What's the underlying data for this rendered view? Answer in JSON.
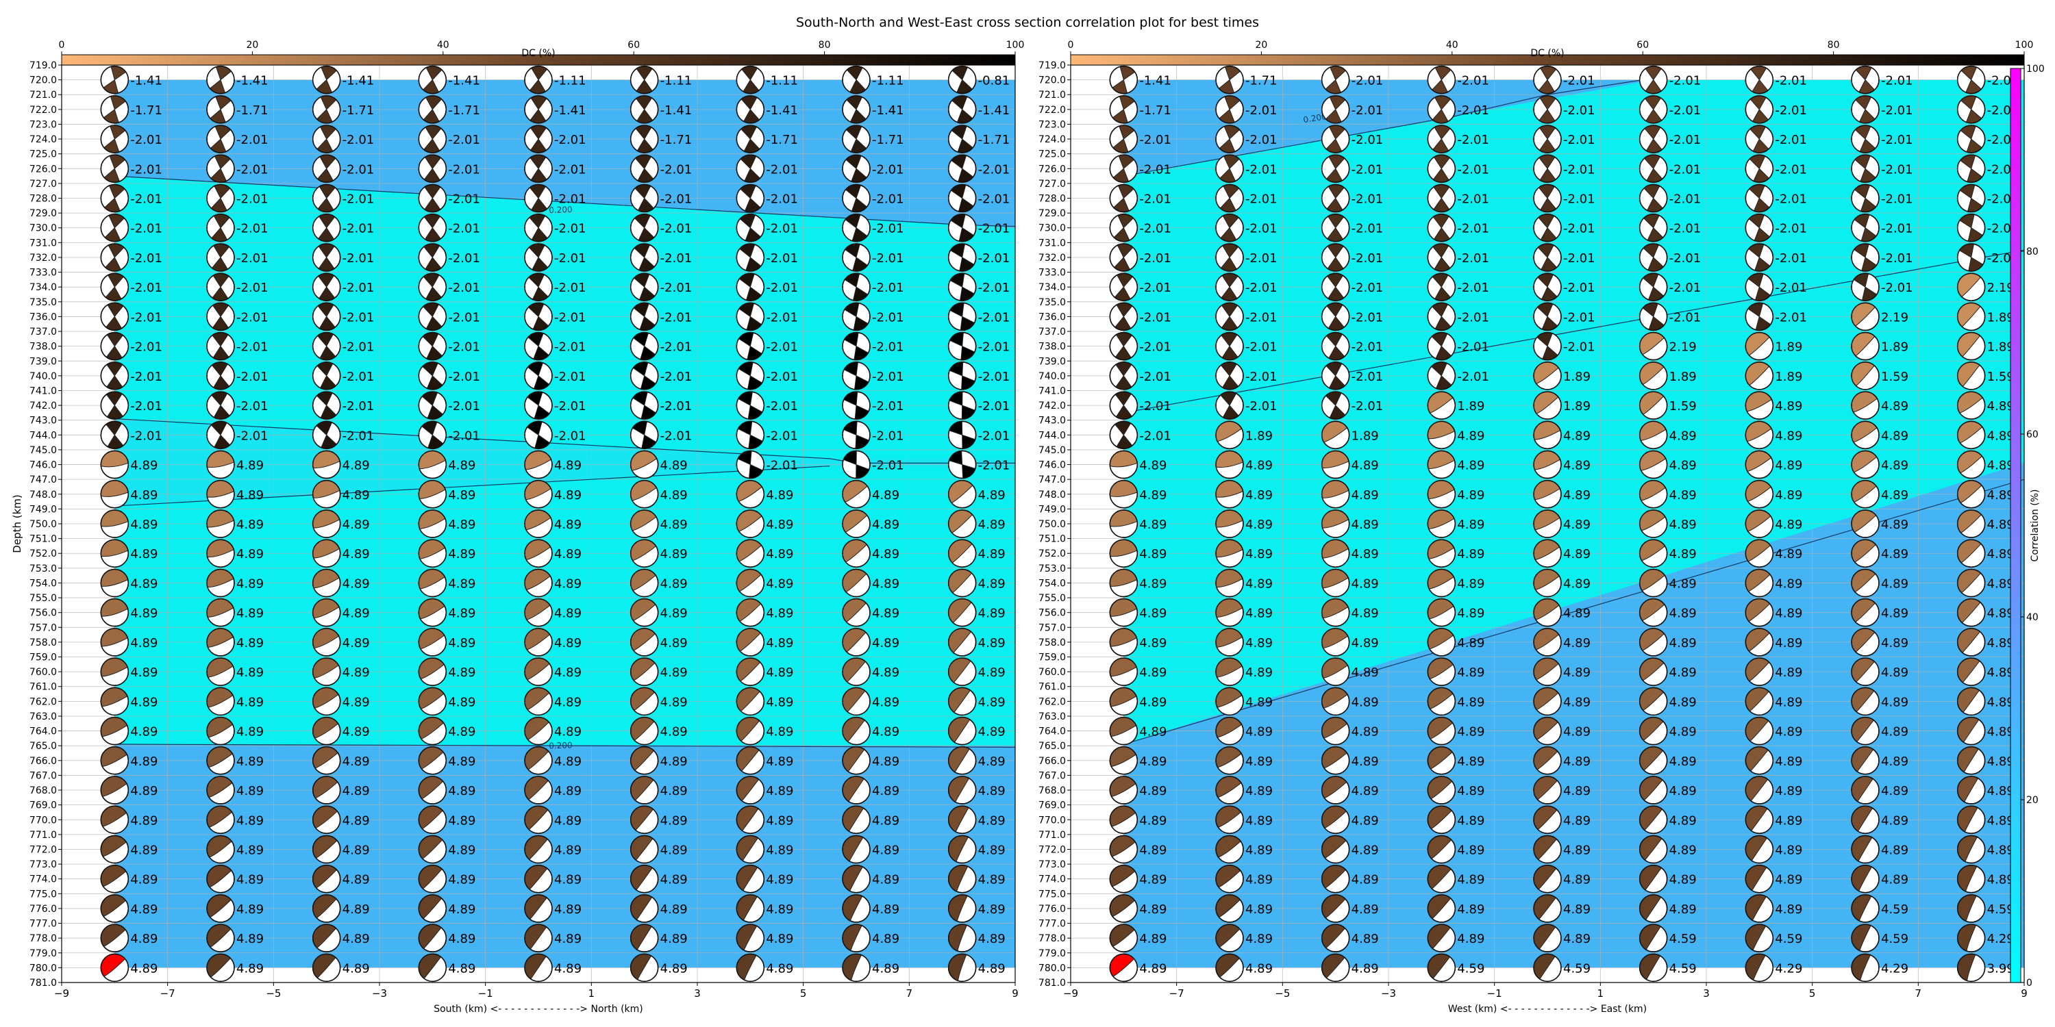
{
  "title": "South-North and West-East cross section correlation plot for best times",
  "chart_data": [
    {
      "type": "heatmap",
      "panel": "south-north",
      "xlabel": "South (km) <- - - - - - - - - - - - -> North (km)",
      "ylabel": "Depth (km)",
      "xlim": [
        -9,
        9
      ],
      "ylim": [
        781,
        719
      ],
      "x_ticks": [
        "−9",
        "−7",
        "−5",
        "−3",
        "−1",
        "1",
        "3",
        "5",
        "7",
        "9"
      ],
      "x": [
        -8,
        -6,
        -4,
        -2,
        0,
        2,
        4,
        6,
        8
      ],
      "depths": [
        720,
        722,
        724,
        726,
        728,
        730,
        732,
        734,
        736,
        738,
        740,
        742,
        744,
        746,
        748,
        750,
        752,
        754,
        756,
        758,
        760,
        762,
        764,
        766,
        768,
        770,
        772,
        774,
        776,
        778,
        780
      ],
      "time_labels": [
        [
          "-1.41",
          "-1.41",
          "-1.41",
          "-1.41",
          "-1.11",
          "-1.11",
          "-1.11",
          "-1.11",
          "-0.81"
        ],
        [
          "-1.71",
          "-1.71",
          "-1.71",
          "-1.71",
          "-1.41",
          "-1.41",
          "-1.41",
          "-1.41",
          "-1.41"
        ],
        [
          "-2.01",
          "-2.01",
          "-2.01",
          "-2.01",
          "-2.01",
          "-1.71",
          "-1.71",
          "-1.71",
          "-1.71"
        ],
        [
          "-2.01",
          "-2.01",
          "-2.01",
          "-2.01",
          "-2.01",
          "-2.01",
          "-2.01",
          "-2.01",
          "-2.01"
        ],
        [
          "-2.01",
          "-2.01",
          "-2.01",
          "-2.01",
          "-2.01",
          "-2.01",
          "-2.01",
          "-2.01",
          "-2.01"
        ],
        [
          "-2.01",
          "-2.01",
          "-2.01",
          "-2.01",
          "-2.01",
          "-2.01",
          "-2.01",
          "-2.01",
          "-2.01"
        ],
        [
          "-2.01",
          "-2.01",
          "-2.01",
          "-2.01",
          "-2.01",
          "-2.01",
          "-2.01",
          "-2.01",
          "-2.01"
        ],
        [
          "-2.01",
          "-2.01",
          "-2.01",
          "-2.01",
          "-2.01",
          "-2.01",
          "-2.01",
          "-2.01",
          "-2.01"
        ],
        [
          "-2.01",
          "-2.01",
          "-2.01",
          "-2.01",
          "-2.01",
          "-2.01",
          "-2.01",
          "-2.01",
          "-2.01"
        ],
        [
          "-2.01",
          "-2.01",
          "-2.01",
          "-2.01",
          "-2.01",
          "-2.01",
          "-2.01",
          "-2.01",
          "-2.01"
        ],
        [
          "-2.01",
          "-2.01",
          "-2.01",
          "-2.01",
          "-2.01",
          "-2.01",
          "-2.01",
          "-2.01",
          "-2.01"
        ],
        [
          "-2.01",
          "-2.01",
          "-2.01",
          "-2.01",
          "-2.01",
          "-2.01",
          "-2.01",
          "-2.01",
          "-2.01"
        ],
        [
          "-2.01",
          "-2.01",
          "-2.01",
          "-2.01",
          "-2.01",
          "-2.01",
          "-2.01",
          "-2.01",
          "-2.01"
        ],
        [
          "4.89",
          "4.89",
          "4.89",
          "4.89",
          "4.89",
          "4.89",
          "-2.01",
          "-2.01",
          "-2.01"
        ],
        [
          "4.89",
          "4.89",
          "4.89",
          "4.89",
          "4.89",
          "4.89",
          "4.89",
          "4.89",
          "4.89"
        ],
        [
          "4.89",
          "4.89",
          "4.89",
          "4.89",
          "4.89",
          "4.89",
          "4.89",
          "4.89",
          "4.89"
        ],
        [
          "4.89",
          "4.89",
          "4.89",
          "4.89",
          "4.89",
          "4.89",
          "4.89",
          "4.89",
          "4.89"
        ],
        [
          "4.89",
          "4.89",
          "4.89",
          "4.89",
          "4.89",
          "4.89",
          "4.89",
          "4.89",
          "4.89"
        ],
        [
          "4.89",
          "4.89",
          "4.89",
          "4.89",
          "4.89",
          "4.89",
          "4.89",
          "4.89",
          "4.89"
        ],
        [
          "4.89",
          "4.89",
          "4.89",
          "4.89",
          "4.89",
          "4.89",
          "4.89",
          "4.89",
          "4.89"
        ],
        [
          "4.89",
          "4.89",
          "4.89",
          "4.89",
          "4.89",
          "4.89",
          "4.89",
          "4.89",
          "4.89"
        ],
        [
          "4.89",
          "4.89",
          "4.89",
          "4.89",
          "4.89",
          "4.89",
          "4.89",
          "4.89",
          "4.89"
        ],
        [
          "4.89",
          "4.89",
          "4.89",
          "4.89",
          "4.89",
          "4.89",
          "4.89",
          "4.89",
          "4.89"
        ],
        [
          "4.89",
          "4.89",
          "4.89",
          "4.89",
          "4.89",
          "4.89",
          "4.89",
          "4.89",
          "4.89"
        ],
        [
          "4.89",
          "4.89",
          "4.89",
          "4.89",
          "4.89",
          "4.89",
          "4.89",
          "4.89",
          "4.89"
        ],
        [
          "4.89",
          "4.89",
          "4.89",
          "4.89",
          "4.89",
          "4.89",
          "4.89",
          "4.89",
          "4.89"
        ],
        [
          "4.89",
          "4.89",
          "4.89",
          "4.89",
          "4.89",
          "4.89",
          "4.89",
          "4.89",
          "4.89"
        ],
        [
          "4.89",
          "4.89",
          "4.89",
          "4.89",
          "4.89",
          "4.89",
          "4.89",
          "4.89",
          "4.89"
        ],
        [
          "4.89",
          "4.89",
          "4.89",
          "4.89",
          "4.89",
          "4.89",
          "4.89",
          "4.89",
          "4.89"
        ],
        [
          "4.89",
          "4.89",
          "4.89",
          "4.89",
          "4.89",
          "4.89",
          "4.89",
          "4.89",
          "4.89"
        ],
        [
          "4.89",
          "4.89",
          "4.89",
          "4.89",
          "4.89",
          "4.89",
          "4.89",
          "4.89",
          "4.89"
        ]
      ],
      "contour_labels": [
        "0.200",
        "0.200"
      ],
      "dc_colorbar": {
        "label": "DC (%)",
        "range": [
          0,
          100
        ],
        "ticks": [
          "0",
          "20",
          "40",
          "60",
          "80",
          "100"
        ]
      }
    },
    {
      "type": "heatmap",
      "panel": "west-east",
      "xlabel": "West (km) <- - - - - - - - - - - - -> East (km)",
      "ylabel": "",
      "xlim": [
        -9,
        9
      ],
      "ylim": [
        781,
        719
      ],
      "x_ticks": [
        "−9",
        "−7",
        "−5",
        "−3",
        "−1",
        "1",
        "3",
        "5",
        "7",
        "9"
      ],
      "x": [
        -8,
        -6,
        -4,
        -2,
        0,
        2,
        4,
        6,
        8
      ],
      "depths": [
        720,
        722,
        724,
        726,
        728,
        730,
        732,
        734,
        736,
        738,
        740,
        742,
        744,
        746,
        748,
        750,
        752,
        754,
        756,
        758,
        760,
        762,
        764,
        766,
        768,
        770,
        772,
        774,
        776,
        778,
        780
      ],
      "time_labels": [
        [
          "-1.41",
          "-1.71",
          "-2.01",
          "-2.01",
          "-2.01",
          "-2.01",
          "-2.01",
          "-2.01",
          "-2.01"
        ],
        [
          "-1.71",
          "-2.01",
          "-2.01",
          "-2.01",
          "-2.01",
          "-2.01",
          "-2.01",
          "-2.01",
          "-2.01"
        ],
        [
          "-2.01",
          "-2.01",
          "-2.01",
          "-2.01",
          "-2.01",
          "-2.01",
          "-2.01",
          "-2.01",
          "-2.01"
        ],
        [
          "-2.01",
          "-2.01",
          "-2.01",
          "-2.01",
          "-2.01",
          "-2.01",
          "-2.01",
          "-2.01",
          "-2.01"
        ],
        [
          "-2.01",
          "-2.01",
          "-2.01",
          "-2.01",
          "-2.01",
          "-2.01",
          "-2.01",
          "-2.01",
          "-2.01"
        ],
        [
          "-2.01",
          "-2.01",
          "-2.01",
          "-2.01",
          "-2.01",
          "-2.01",
          "-2.01",
          "-2.01",
          "-2.01"
        ],
        [
          "-2.01",
          "-2.01",
          "-2.01",
          "-2.01",
          "-2.01",
          "-2.01",
          "-2.01",
          "-2.01",
          "-2.01"
        ],
        [
          "-2.01",
          "-2.01",
          "-2.01",
          "-2.01",
          "-2.01",
          "-2.01",
          "-2.01",
          "-2.01",
          "2.19"
        ],
        [
          "-2.01",
          "-2.01",
          "-2.01",
          "-2.01",
          "-2.01",
          "-2.01",
          "-2.01",
          "2.19",
          "1.89"
        ],
        [
          "-2.01",
          "-2.01",
          "-2.01",
          "-2.01",
          "-2.01",
          "2.19",
          "1.89",
          "1.89",
          "1.89"
        ],
        [
          "-2.01",
          "-2.01",
          "-2.01",
          "-2.01",
          "1.89",
          "1.89",
          "1.89",
          "1.59",
          "1.59"
        ],
        [
          "-2.01",
          "-2.01",
          "-2.01",
          "1.89",
          "1.89",
          "1.59",
          "4.89",
          "4.89",
          "4.89"
        ],
        [
          "-2.01",
          "1.89",
          "1.89",
          "4.89",
          "4.89",
          "4.89",
          "4.89",
          "4.89",
          "4.89"
        ],
        [
          "4.89",
          "4.89",
          "4.89",
          "4.89",
          "4.89",
          "4.89",
          "4.89",
          "4.89",
          "4.89"
        ],
        [
          "4.89",
          "4.89",
          "4.89",
          "4.89",
          "4.89",
          "4.89",
          "4.89",
          "4.89",
          "4.89"
        ],
        [
          "4.89",
          "4.89",
          "4.89",
          "4.89",
          "4.89",
          "4.89",
          "4.89",
          "4.89",
          "4.89"
        ],
        [
          "4.89",
          "4.89",
          "4.89",
          "4.89",
          "4.89",
          "4.89",
          "4.89",
          "4.89",
          "4.89"
        ],
        [
          "4.89",
          "4.89",
          "4.89",
          "4.89",
          "4.89",
          "4.89",
          "4.89",
          "4.89",
          "4.89"
        ],
        [
          "4.89",
          "4.89",
          "4.89",
          "4.89",
          "4.89",
          "4.89",
          "4.89",
          "4.89",
          "4.89"
        ],
        [
          "4.89",
          "4.89",
          "4.89",
          "4.89",
          "4.89",
          "4.89",
          "4.89",
          "4.89",
          "4.89"
        ],
        [
          "4.89",
          "4.89",
          "4.89",
          "4.89",
          "4.89",
          "4.89",
          "4.89",
          "4.89",
          "4.89"
        ],
        [
          "4.89",
          "4.89",
          "4.89",
          "4.89",
          "4.89",
          "4.89",
          "4.89",
          "4.89",
          "4.89"
        ],
        [
          "4.89",
          "4.89",
          "4.89",
          "4.89",
          "4.89",
          "4.89",
          "4.89",
          "4.89",
          "4.89"
        ],
        [
          "4.89",
          "4.89",
          "4.89",
          "4.89",
          "4.89",
          "4.89",
          "4.89",
          "4.89",
          "4.89"
        ],
        [
          "4.89",
          "4.89",
          "4.89",
          "4.89",
          "4.89",
          "4.89",
          "4.89",
          "4.89",
          "4.89"
        ],
        [
          "4.89",
          "4.89",
          "4.89",
          "4.89",
          "4.89",
          "4.89",
          "4.89",
          "4.89",
          "4.89"
        ],
        [
          "4.89",
          "4.89",
          "4.89",
          "4.89",
          "4.89",
          "4.89",
          "4.89",
          "4.89",
          "4.89"
        ],
        [
          "4.89",
          "4.89",
          "4.89",
          "4.89",
          "4.89",
          "4.89",
          "4.89",
          "4.89",
          "4.89"
        ],
        [
          "4.89",
          "4.89",
          "4.89",
          "4.89",
          "4.89",
          "4.89",
          "4.89",
          "4.59",
          "4.59"
        ],
        [
          "4.89",
          "4.89",
          "4.89",
          "4.89",
          "4.89",
          "4.59",
          "4.59",
          "4.59",
          "4.29"
        ],
        [
          "4.89",
          "4.89",
          "4.89",
          "4.59",
          "4.59",
          "4.59",
          "4.29",
          "4.29",
          "3.99"
        ]
      ],
      "contour_labels": [
        "0.200",
        "0.200"
      ],
      "dc_colorbar": {
        "label": "DC (%)",
        "range": [
          0,
          100
        ],
        "ticks": [
          "0",
          "20",
          "40",
          "60",
          "80",
          "100"
        ]
      }
    }
  ],
  "correlation_colorbar": {
    "label": "Correlation (%)",
    "range": [
      0,
      100
    ],
    "ticks": [
      "0",
      "20",
      "40",
      "60",
      "80",
      "100"
    ]
  },
  "colors": {
    "corr_high": "#45b4f5",
    "corr_low": "#0af0f0",
    "dc_low": "#fdb878",
    "dc_mid": "#6b4428",
    "dc_high": "#000000",
    "corr_bar_low": "#00ffff",
    "corr_bar_high": "#ff00ff",
    "best_marker": "#ff0000"
  }
}
